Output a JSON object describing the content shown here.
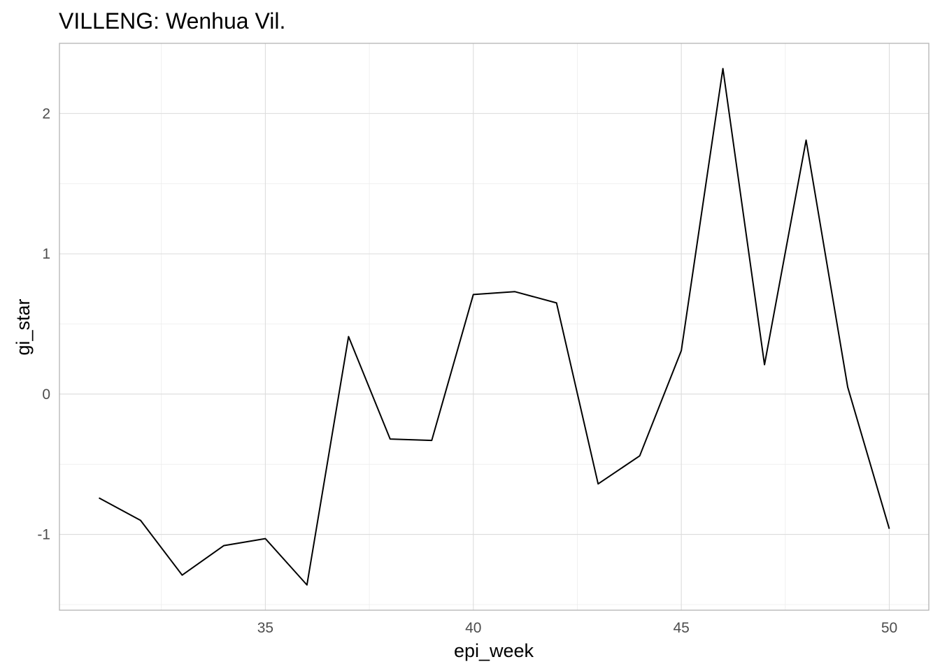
{
  "chart_data": {
    "type": "line",
    "title": "VILLENG: Wenhua Vil.",
    "xlabel": "epi_week",
    "ylabel": "gi_star",
    "xlim": [
      30.05,
      50.95
    ],
    "ylim": [
      -1.54,
      2.5
    ],
    "xticks": [
      35,
      40,
      45,
      50
    ],
    "xtick_labels": [
      "35",
      "40",
      "45",
      "50"
    ],
    "yticks": [
      -1,
      0,
      1,
      2
    ],
    "ytick_labels": [
      "-1",
      "0",
      "1",
      "2"
    ],
    "x_minor_ticks": [
      32.5,
      37.5,
      42.5,
      47.5
    ],
    "y_minor_ticks": [
      -1.5,
      -0.5,
      0.5,
      1.5
    ],
    "grid": true,
    "colors": {
      "line": "#000000",
      "grid": "#dcdcdc",
      "border": "#b3b3b3"
    },
    "series": [
      {
        "x": [
          31,
          32,
          33,
          34,
          35,
          36,
          37,
          38,
          39,
          40,
          41,
          42,
          43,
          44,
          45,
          46,
          47,
          48,
          49,
          50
        ],
        "y": [
          -0.74,
          -0.9,
          -1.29,
          -1.08,
          -1.03,
          -1.36,
          0.41,
          -0.32,
          -0.33,
          0.71,
          0.73,
          0.65,
          -0.64,
          -0.44,
          0.31,
          2.32,
          0.21,
          1.81,
          0.05,
          -0.96
        ]
      }
    ]
  }
}
